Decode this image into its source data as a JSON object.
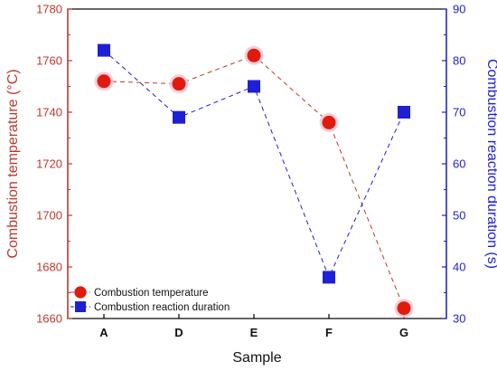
{
  "chart_data": {
    "type": "line",
    "categories": [
      "A",
      "D",
      "E",
      "F",
      "G"
    ],
    "xlabel": "Sample",
    "ylabel": "Combustion temperature (°C)",
    "y2label": "Combustion reaction duration (s)",
    "ylim": [
      1660,
      1780
    ],
    "y2lim": [
      30,
      90
    ],
    "yticks": [
      "1660",
      "1680",
      "1700",
      "1720",
      "1740",
      "1760",
      "1780"
    ],
    "y2ticks": [
      "30",
      "40",
      "50",
      "60",
      "70",
      "80",
      "90"
    ],
    "grid": false,
    "legend_position": "bottom-left",
    "series": [
      {
        "name": "Combustion temperature",
        "axis": "left",
        "marker": "circle",
        "color": "#c0392b",
        "values": [
          1752,
          1751,
          1762,
          1736,
          1664
        ]
      },
      {
        "name": "Combustion reaction duration",
        "axis": "right",
        "marker": "square",
        "color": "#1f1fd6",
        "values": [
          82,
          69,
          75,
          38,
          70
        ]
      }
    ]
  }
}
